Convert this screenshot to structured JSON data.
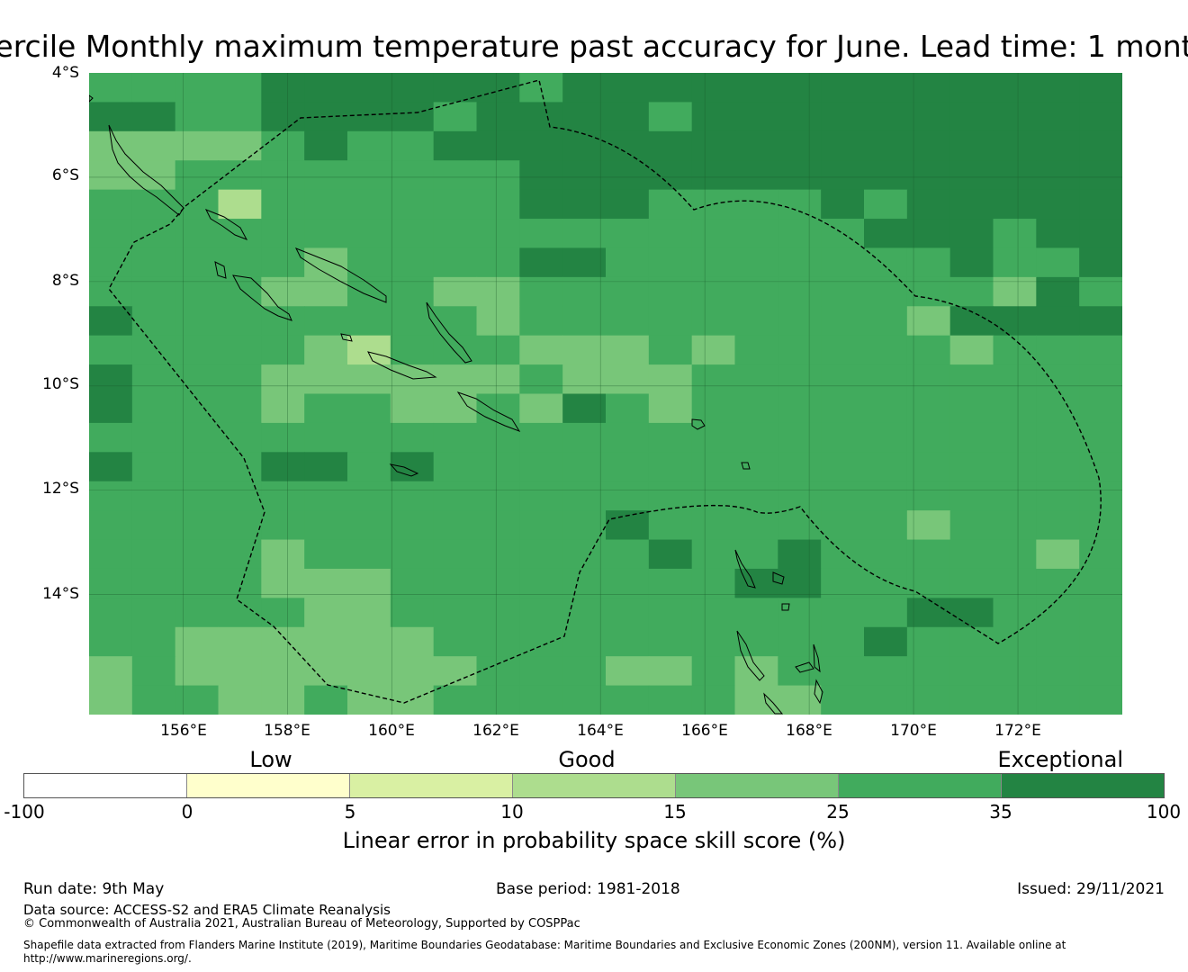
{
  "title": "ercile Monthly maximum temperature past accuracy for June. Lead time: 1 mont",
  "map": {
    "lat_labels": [
      "4°S",
      "6°S",
      "8°S",
      "10°S",
      "12°S",
      "14°S"
    ],
    "lon_labels": [
      "156°E",
      "158°E",
      "160°E",
      "162°E",
      "164°E",
      "166°E",
      "168°E",
      "170°E",
      "172°E"
    ],
    "lat_range": [
      -4,
      -16.3
    ],
    "lon_range": [
      154.2,
      174.0
    ],
    "border_style": "dashed",
    "gridlines": true,
    "class_colors": {
      "1": "#ffffcc",
      "2": "#d9f0a3",
      "3": "#addd8e",
      "4": "#78c679",
      "5": "#41ab5d",
      "6": "#238443"
    },
    "grid": [
      "555566666666666666666666",
      "655566566666656666666666",
      "554456666666666666666666",
      "555555566666666666666666",
      "555555555555666666666666",
      "555555555555566666666666",
      "555555555556666666666666",
      "555555555555555555555555",
      "655555555555555555556666",
      "555555555555555555555555",
      "555555555555555555555555",
      "655555555556555555555556",
      "555555555555555555555555",
      "555556555555555555555555",
      "555555555555555555555555",
      "555555555555555555555555",
      "555555555555555555555555",
      "555555555555555555555555",
      "555555555555555555555555",
      "555555555555555555555555",
      "555555555555555555555555",
      "555555555555555555555555"
    ],
    "overrides": [
      {
        "c": 10,
        "r": 0,
        "v": 5
      },
      {
        "c": 1,
        "r": 1,
        "v": 6
      },
      {
        "c": 6,
        "r": 1,
        "v": 6
      },
      {
        "c": 8,
        "r": 1,
        "v": 5
      },
      {
        "c": 10,
        "r": 1,
        "v": 6
      },
      {
        "c": 13,
        "r": 1,
        "v": 5
      },
      {
        "c": 0,
        "r": 2,
        "v": 4
      },
      {
        "c": 1,
        "r": 2,
        "v": 4
      },
      {
        "c": 2,
        "r": 2,
        "v": 4
      },
      {
        "c": 5,
        "r": 2,
        "v": 6
      },
      {
        "c": 6,
        "r": 2,
        "v": 5
      },
      {
        "c": 7,
        "r": 2,
        "v": 5
      },
      {
        "c": 0,
        "r": 3,
        "v": 4
      },
      {
        "c": 1,
        "r": 3,
        "v": 4
      },
      {
        "c": 7,
        "r": 3,
        "v": 5
      },
      {
        "c": 8,
        "r": 3,
        "v": 5
      },
      {
        "c": 9,
        "r": 3,
        "v": 5
      },
      {
        "c": 3,
        "r": 4,
        "v": 3
      },
      {
        "c": 10,
        "r": 4,
        "v": 6
      },
      {
        "c": 11,
        "r": 4,
        "v": 6
      },
      {
        "c": 13,
        "r": 4,
        "v": 5
      },
      {
        "c": 14,
        "r": 4,
        "v": 5
      },
      {
        "c": 15,
        "r": 4,
        "v": 5
      },
      {
        "c": 16,
        "r": 4,
        "v": 5
      },
      {
        "c": 17,
        "r": 4,
        "v": 6
      },
      {
        "c": 18,
        "r": 4,
        "v": 5
      },
      {
        "c": 10,
        "r": 5,
        "v": 5
      },
      {
        "c": 11,
        "r": 5,
        "v": 5
      },
      {
        "c": 12,
        "r": 5,
        "v": 5
      },
      {
        "c": 13,
        "r": 5,
        "v": 5
      },
      {
        "c": 14,
        "r": 5,
        "v": 5
      },
      {
        "c": 15,
        "r": 5,
        "v": 5
      },
      {
        "c": 16,
        "r": 5,
        "v": 5
      },
      {
        "c": 17,
        "r": 5,
        "v": 5
      },
      {
        "c": 19,
        "r": 5,
        "v": 6
      },
      {
        "c": 21,
        "r": 5,
        "v": 5
      },
      {
        "c": 5,
        "r": 6,
        "v": 4
      },
      {
        "c": 10,
        "r": 6,
        "v": 6
      },
      {
        "c": 12,
        "r": 6,
        "v": 5
      },
      {
        "c": 13,
        "r": 6,
        "v": 5
      },
      {
        "c": 14,
        "r": 6,
        "v": 5
      },
      {
        "c": 15,
        "r": 6,
        "v": 5
      },
      {
        "c": 16,
        "r": 6,
        "v": 5
      },
      {
        "c": 17,
        "r": 6,
        "v": 5
      },
      {
        "c": 18,
        "r": 6,
        "v": 5
      },
      {
        "c": 19,
        "r": 6,
        "v": 5
      },
      {
        "c": 20,
        "r": 6,
        "v": 6
      },
      {
        "c": 21,
        "r": 6,
        "v": 5
      },
      {
        "c": 22,
        "r": 6,
        "v": 5
      },
      {
        "c": 4,
        "r": 7,
        "v": 4
      },
      {
        "c": 5,
        "r": 7,
        "v": 4
      },
      {
        "c": 8,
        "r": 7,
        "v": 4
      },
      {
        "c": 9,
        "r": 7,
        "v": 4
      },
      {
        "c": 19,
        "r": 7,
        "v": 5
      },
      {
        "c": 20,
        "r": 7,
        "v": 5
      },
      {
        "c": 21,
        "r": 7,
        "v": 4
      },
      {
        "c": 22,
        "r": 7,
        "v": 6
      },
      {
        "c": 0,
        "r": 8,
        "v": 6
      },
      {
        "c": 8,
        "r": 8,
        "v": 5
      },
      {
        "c": 9,
        "r": 8,
        "v": 4
      },
      {
        "c": 19,
        "r": 8,
        "v": 4
      },
      {
        "c": 5,
        "r": 9,
        "v": 4
      },
      {
        "c": 6,
        "r": 9,
        "v": 3
      },
      {
        "c": 10,
        "r": 9,
        "v": 4
      },
      {
        "c": 11,
        "r": 9,
        "v": 4
      },
      {
        "c": 12,
        "r": 9,
        "v": 4
      },
      {
        "c": 13,
        "r": 9,
        "v": 5
      },
      {
        "c": 14,
        "r": 9,
        "v": 4
      },
      {
        "c": 15,
        "r": 9,
        "v": 5
      },
      {
        "c": 16,
        "r": 9,
        "v": 5
      },
      {
        "c": 19,
        "r": 9,
        "v": 5
      },
      {
        "c": 20,
        "r": 9,
        "v": 4
      },
      {
        "c": 0,
        "r": 10,
        "v": 6
      },
      {
        "c": 4,
        "r": 10,
        "v": 4
      },
      {
        "c": 5,
        "r": 10,
        "v": 4
      },
      {
        "c": 6,
        "r": 10,
        "v": 4
      },
      {
        "c": 7,
        "r": 10,
        "v": 4
      },
      {
        "c": 8,
        "r": 10,
        "v": 4
      },
      {
        "c": 9,
        "r": 10,
        "v": 4
      },
      {
        "c": 11,
        "r": 10,
        "v": 4
      },
      {
        "c": 12,
        "r": 10,
        "v": 4
      },
      {
        "c": 13,
        "r": 10,
        "v": 4
      },
      {
        "c": 4,
        "r": 11,
        "v": 4
      },
      {
        "c": 7,
        "r": 11,
        "v": 4
      },
      {
        "c": 8,
        "r": 11,
        "v": 4
      },
      {
        "c": 10,
        "r": 11,
        "v": 4
      },
      {
        "c": 13,
        "r": 11,
        "v": 4
      },
      {
        "c": 23,
        "r": 11,
        "v": 5
      },
      {
        "c": 0,
        "r": 13,
        "v": 6
      },
      {
        "c": 4,
        "r": 13,
        "v": 6
      },
      {
        "c": 7,
        "r": 13,
        "v": 6
      },
      {
        "c": 12,
        "r": 15,
        "v": 6
      },
      {
        "c": 19,
        "r": 15,
        "v": 4
      },
      {
        "c": 4,
        "r": 16,
        "v": 4
      },
      {
        "c": 13,
        "r": 16,
        "v": 6
      },
      {
        "c": 16,
        "r": 16,
        "v": 6
      },
      {
        "c": 22,
        "r": 16,
        "v": 4
      },
      {
        "c": 4,
        "r": 17,
        "v": 4
      },
      {
        "c": 5,
        "r": 17,
        "v": 4
      },
      {
        "c": 6,
        "r": 17,
        "v": 4
      },
      {
        "c": 15,
        "r": 17,
        "v": 6
      },
      {
        "c": 16,
        "r": 17,
        "v": 6
      },
      {
        "c": 5,
        "r": 18,
        "v": 4
      },
      {
        "c": 6,
        "r": 18,
        "v": 4
      },
      {
        "c": 19,
        "r": 18,
        "v": 6
      },
      {
        "c": 20,
        "r": 18,
        "v": 6
      },
      {
        "c": 2,
        "r": 19,
        "v": 4
      },
      {
        "c": 3,
        "r": 19,
        "v": 4
      },
      {
        "c": 4,
        "r": 19,
        "v": 4
      },
      {
        "c": 5,
        "r": 19,
        "v": 4
      },
      {
        "c": 6,
        "r": 19,
        "v": 4
      },
      {
        "c": 7,
        "r": 19,
        "v": 4
      },
      {
        "c": 18,
        "r": 19,
        "v": 6
      },
      {
        "c": 0,
        "r": 20,
        "v": 4
      },
      {
        "c": 2,
        "r": 20,
        "v": 4
      },
      {
        "c": 3,
        "r": 20,
        "v": 4
      },
      {
        "c": 4,
        "r": 20,
        "v": 4
      },
      {
        "c": 5,
        "r": 20,
        "v": 4
      },
      {
        "c": 6,
        "r": 20,
        "v": 4
      },
      {
        "c": 7,
        "r": 20,
        "v": 4
      },
      {
        "c": 8,
        "r": 20,
        "v": 4
      },
      {
        "c": 12,
        "r": 20,
        "v": 4
      },
      {
        "c": 13,
        "r": 20,
        "v": 4
      },
      {
        "c": 15,
        "r": 20,
        "v": 4
      },
      {
        "c": 0,
        "r": 21,
        "v": 4
      },
      {
        "c": 3,
        "r": 21,
        "v": 4
      },
      {
        "c": 4,
        "r": 21,
        "v": 4
      },
      {
        "c": 6,
        "r": 21,
        "v": 4
      },
      {
        "c": 7,
        "r": 21,
        "v": 4
      },
      {
        "c": 15,
        "r": 21,
        "v": 4
      },
      {
        "c": 16,
        "r": 21,
        "v": 4
      }
    ]
  },
  "legend": {
    "categories": [
      "Low",
      "Good",
      "Exceptional"
    ],
    "colors": [
      "#ffffff",
      "#ffffcc",
      "#d9f0a3",
      "#addd8e",
      "#78c679",
      "#41ab5d",
      "#238443"
    ],
    "ticks": [
      "-100",
      "0",
      "5",
      "10",
      "15",
      "25",
      "35",
      "100"
    ],
    "label": "Linear error in probability space skill score (%)"
  },
  "footer": {
    "run_date": "Run date: 9th May",
    "base_period": "Base period: 1981-2018",
    "issued": "Issued: 29/11/2021",
    "data_source": "Data source: ACCESS-S2 and ERA5 Climate Reanalysis",
    "copyright": "© Commonwealth of Australia 2021, Australian Bureau of Meteorology, Supported by COSPPac",
    "shapefile_1": "Shapefile data extracted from Flanders Marine Institute (2019), Maritime Boundaries Geodatabase: Maritime Boundaries and Exclusive Economic Zones (200NM), version 11. Available online at",
    "shapefile_2": "http://www.marineregions.org/."
  }
}
